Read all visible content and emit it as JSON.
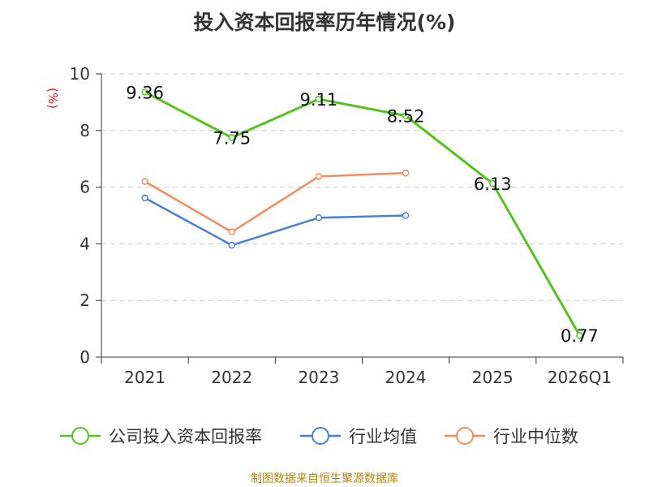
{
  "chart_data": {
    "type": "line",
    "title": "投入资本回报率历年情况(%)",
    "ylabel": "(%)",
    "xlabel": "",
    "ylim": [
      0,
      10
    ],
    "yticks": [
      "0",
      "2",
      "4",
      "6",
      "8",
      "10"
    ],
    "categories": [
      "2021",
      "2022",
      "2023",
      "2024",
      "2025",
      "2026Q1"
    ],
    "grid": true,
    "legend_position": "bottom",
    "series": [
      {
        "name": "公司投入资本回报率",
        "color": "#52c41a",
        "values": [
          9.36,
          7.75,
          9.11,
          8.52,
          6.13,
          0.77
        ],
        "labels": [
          "9.36",
          "7.75",
          "9.11",
          "8.52",
          "6.13",
          "0.77"
        ]
      },
      {
        "name": "行业均值",
        "color": "#4a7fd8",
        "values": [
          5.62,
          3.95,
          4.92,
          5.0,
          null,
          null
        ]
      },
      {
        "name": "行业中位数",
        "color": "#f28c5a",
        "values": [
          6.2,
          4.42,
          6.38,
          6.5,
          null,
          null
        ]
      }
    ]
  },
  "source": "制图数据来自恒生聚源数据库"
}
